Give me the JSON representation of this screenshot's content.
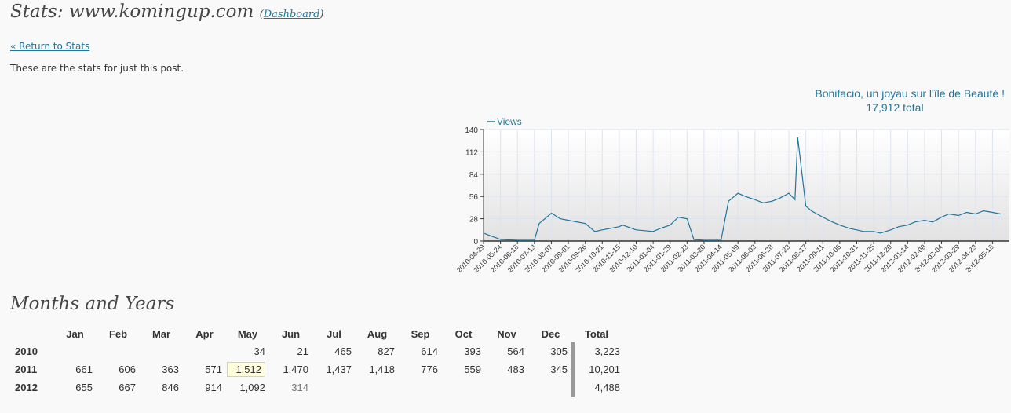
{
  "header": {
    "title": "Stats: www.komingup.com",
    "dashboard_open": "(",
    "dashboard_label": "Dashboard",
    "dashboard_close": ")"
  },
  "nav": {
    "back_label": "« Return to Stats"
  },
  "intro": "These are the stats for just this post.",
  "chart_data": {
    "type": "line",
    "title": "Bonifacio, un joyau sur l'île de Beauté !",
    "subtitle": "17,912 total",
    "legend": "Views",
    "legend_position": "top-left",
    "ylim": [
      0,
      140
    ],
    "y_ticks": [
      0,
      28,
      56,
      84,
      112,
      140
    ],
    "grid": true,
    "x_ticks": [
      "2010-04-29",
      "2010-05-24",
      "2010-06-18",
      "2010-07-13",
      "2010-08-07",
      "2010-09-01",
      "2010-09-26",
      "2010-10-21",
      "2010-11-15",
      "2010-12-10",
      "2011-01-04",
      "2011-01-29",
      "2011-02-23",
      "2011-03-20",
      "2011-04-14",
      "2011-05-09",
      "2011-06-03",
      "2011-06-28",
      "2011-07-23",
      "2011-08-17",
      "2011-09-11",
      "2011-10-06",
      "2011-10-31",
      "2011-11-25",
      "2011-12-20",
      "2012-01-14",
      "2012-02-08",
      "2012-03-04",
      "2012-03-29",
      "2012-04-23",
      "2012-05-18"
    ],
    "series": [
      {
        "name": "Views",
        "color": "#21759b",
        "x": [
          "2010-04-29",
          "2010-05-24",
          "2010-06-18",
          "2010-07-13",
          "2010-07-20",
          "2010-08-07",
          "2010-08-20",
          "2010-09-01",
          "2010-09-26",
          "2010-10-10",
          "2010-10-21",
          "2010-11-15",
          "2010-11-20",
          "2010-12-10",
          "2011-01-04",
          "2011-01-15",
          "2011-01-29",
          "2011-02-10",
          "2011-02-23",
          "2011-03-05",
          "2011-03-20",
          "2011-04-14",
          "2011-04-25",
          "2011-05-09",
          "2011-05-20",
          "2011-06-03",
          "2011-06-15",
          "2011-06-28",
          "2011-07-10",
          "2011-07-23",
          "2011-08-01",
          "2011-08-05",
          "2011-08-17",
          "2011-08-25",
          "2011-09-11",
          "2011-09-25",
          "2011-10-06",
          "2011-10-20",
          "2011-10-31",
          "2011-11-10",
          "2011-11-25",
          "2011-12-05",
          "2011-12-20",
          "2012-01-01",
          "2012-01-14",
          "2012-01-25",
          "2012-02-08",
          "2012-02-20",
          "2012-03-04",
          "2012-03-15",
          "2012-03-29",
          "2012-04-10",
          "2012-04-23",
          "2012-05-05",
          "2012-05-18",
          "2012-05-30"
        ],
        "values": [
          10,
          2,
          1,
          1,
          22,
          35,
          28,
          26,
          22,
          12,
          14,
          18,
          20,
          14,
          12,
          16,
          20,
          30,
          28,
          2,
          1,
          1,
          50,
          60,
          56,
          52,
          48,
          50,
          54,
          60,
          52,
          130,
          44,
          38,
          30,
          24,
          20,
          16,
          14,
          12,
          12,
          10,
          14,
          18,
          20,
          24,
          26,
          24,
          30,
          34,
          32,
          36,
          34,
          38,
          36,
          34
        ]
      }
    ]
  },
  "months_section": {
    "title": "Months and Years",
    "headers": [
      "",
      "Jan",
      "Feb",
      "Mar",
      "Apr",
      "May",
      "Jun",
      "Jul",
      "Aug",
      "Sep",
      "Oct",
      "Nov",
      "Dec",
      "Total"
    ],
    "rows": [
      {
        "year": "2010",
        "cells": [
          "",
          "",
          "",
          "",
          "34",
          "21",
          "465",
          "827",
          "614",
          "393",
          "564",
          "305"
        ],
        "total": "3,223"
      },
      {
        "year": "2011",
        "cells": [
          "661",
          "606",
          "363",
          "571",
          "1,512",
          "1,470",
          "1,437",
          "1,418",
          "776",
          "559",
          "483",
          "345"
        ],
        "total": "10,201"
      },
      {
        "year": "2012",
        "cells": [
          "655",
          "667",
          "846",
          "914",
          "1,092",
          "314",
          "",
          "",
          "",
          "",
          "",
          ""
        ],
        "total": "4,488"
      }
    ]
  }
}
